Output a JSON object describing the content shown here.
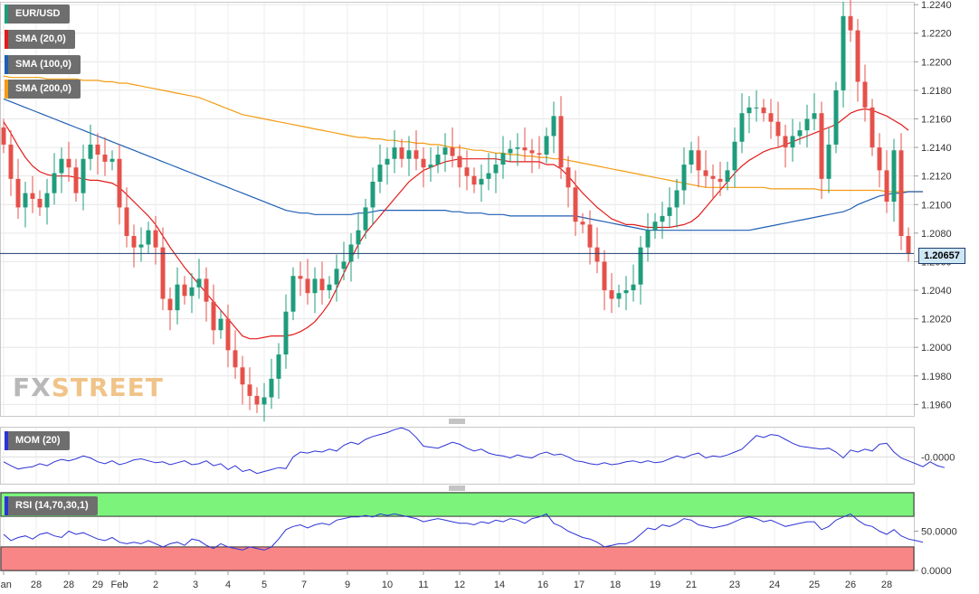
{
  "legend": {
    "symbol": "EUR/USD",
    "sma20": "SMA (20,0)",
    "sma100": "SMA (100,0)",
    "sma200": "SMA (200,0)",
    "mom": "MOM (20)",
    "rsi": "RSI (14,70,30,1)"
  },
  "current_price": "1.20657",
  "logo": {
    "fx": "FX",
    "street": "STREET"
  },
  "colors": {
    "bull": "#1f9c7c",
    "bear": "#e5514a",
    "sma20": "#e31b1b",
    "sma100": "#1f5fb4",
    "sma200": "#f39c12",
    "indicator": "#2d33d6",
    "rsi_overbought": "#7cf47c",
    "rsi_oversold": "#f98686"
  },
  "chart_data": {
    "type": "candlestick",
    "title": "EUR/USD",
    "price_axis": {
      "ticks": [
        "1.2240",
        "1.2220",
        "1.2200",
        "1.2180",
        "1.2160",
        "1.2140",
        "1.2120",
        "1.2100",
        "1.2080",
        "1.2060",
        "1.2040",
        "1.2020",
        "1.2000",
        "1.1980",
        "1.1960"
      ],
      "range": [
        1.1952,
        1.2242
      ]
    },
    "x_axis": {
      "labels": [
        "Jan",
        "28",
        "28",
        "29",
        "Feb",
        "2",
        "3",
        "4",
        "5",
        "7",
        "9",
        "10",
        "11",
        "12",
        "14",
        "16",
        "17",
        "18",
        "19",
        "21",
        "23",
        "24",
        "25",
        "26",
        "28"
      ],
      "label_positions": [
        0,
        4.5,
        9,
        13,
        16,
        21,
        26.5,
        31,
        36,
        41.5,
        47.5,
        53,
        58,
        63,
        68.5,
        74.5,
        79.5,
        84.5,
        90,
        95,
        101,
        106.5,
        112,
        117,
        122
      ]
    },
    "close_series": [
      1.2142,
      1.2118,
      1.2098,
      1.2108,
      1.2104,
      1.2098,
      1.2108,
      1.2122,
      1.2132,
      1.2126,
      1.2108,
      1.2132,
      1.2142,
      1.2135,
      1.213,
      1.2132,
      1.2098,
      1.2078,
      1.207,
      1.2072,
      1.2082,
      1.207,
      1.2034,
      1.2026,
      1.2044,
      1.2036,
      1.2042,
      1.2048,
      1.2032,
      1.2012,
      1.202,
      1.1998,
      1.1986,
      1.1974,
      1.1966,
      1.196,
      1.1965,
      1.1978,
      1.1995,
      1.2025,
      1.205,
      1.2048,
      1.2038,
      1.2048,
      1.204,
      1.2044,
      1.2055,
      1.206,
      1.2072,
      1.2082,
      1.2098,
      1.2116,
      1.2128,
      1.2132,
      1.214,
      1.2132,
      1.2138,
      1.2132,
      1.2126,
      1.2128,
      1.2135,
      1.214,
      1.2134,
      1.2126,
      1.212,
      1.2114,
      1.2118,
      1.2122,
      1.2128,
      1.2136,
      1.2139,
      1.214,
      1.2138,
      1.2136,
      1.2135,
      1.2148,
      1.2162,
      1.2126,
      1.2112,
      1.2088,
      1.2086,
      1.207,
      1.206,
      1.204,
      1.2034,
      1.2038,
      1.204,
      1.2044,
      1.207,
      1.2082,
      1.2088,
      1.2092,
      1.2098,
      1.211,
      1.2128,
      1.2138,
      1.2124,
      1.212,
      1.2118,
      1.2116,
      1.2124,
      1.2144,
      1.2164,
      1.2168,
      1.2168,
      1.2164,
      1.2158,
      1.2148,
      1.214,
      1.2148,
      1.2152,
      1.216,
      1.2164,
      1.2118,
      1.2142,
      1.218,
      1.2232,
      1.2222,
      1.2186,
      1.2168,
      1.214,
      1.2124,
      1.2102,
      1.2138,
      1.2078,
      1.2066
    ],
    "sma20": [
      1.2158,
      1.215,
      1.2141,
      1.2133,
      1.2127,
      1.2123,
      1.2121,
      1.212,
      1.212,
      1.212,
      1.2119,
      1.2118,
      1.2117,
      1.2117,
      1.2116,
      1.2115,
      1.2112,
      1.2107,
      1.2102,
      1.2097,
      1.2092,
      1.2086,
      1.2078,
      1.207,
      1.2063,
      1.2056,
      1.205,
      1.2044,
      1.2038,
      1.2032,
      1.2026,
      1.202,
      1.2014,
      1.2008,
      1.2006,
      1.2006,
      1.2007,
      1.2008,
      1.2008,
      1.2008,
      1.2009,
      1.2011,
      1.2014,
      1.2018,
      1.2024,
      1.2031,
      1.2041,
      1.2052,
      1.2062,
      1.2072,
      1.208,
      1.2086,
      1.2092,
      1.2098,
      1.2104,
      1.211,
      1.2116,
      1.212,
      1.2124,
      1.2126,
      1.2128,
      1.213,
      1.2131,
      1.2132,
      1.2132,
      1.2132,
      1.2132,
      1.2132,
      1.2132,
      1.2131,
      1.213,
      1.213,
      1.213,
      1.213,
      1.213,
      1.2128,
      1.2128,
      1.2125,
      1.212,
      1.2114,
      1.2108,
      1.2103,
      1.2098,
      1.2094,
      1.209,
      1.2088,
      1.2086,
      1.2086,
      1.2085,
      1.2084,
      1.2084,
      1.2084,
      1.2084,
      1.2085,
      1.2086,
      1.2088,
      1.2092,
      1.2098,
      1.2104,
      1.211,
      1.2116,
      1.2122,
      1.2127,
      1.2131,
      1.2134,
      1.2137,
      1.2139,
      1.214,
      1.2142,
      1.2144,
      1.2146,
      1.2148,
      1.215,
      1.2152,
      1.2154,
      1.2156,
      1.216,
      1.2164,
      1.2166,
      1.2167,
      1.2166,
      1.2164,
      1.2162,
      1.2159,
      1.2156,
      1.2152
    ],
    "sma100": [
      1.2174,
      1.2172,
      1.217,
      1.2168,
      1.2166,
      1.2164,
      1.2162,
      1.216,
      1.2158,
      1.2156,
      1.2154,
      1.2152,
      1.215,
      1.2148,
      1.2146,
      1.2144,
      1.2142,
      1.214,
      1.2138,
      1.2136,
      1.2134,
      1.2132,
      1.213,
      1.2128,
      1.2126,
      1.2124,
      1.2122,
      1.212,
      1.2118,
      1.2116,
      1.2114,
      1.2112,
      1.211,
      1.2108,
      1.2106,
      1.2104,
      1.2102,
      1.21,
      1.2098,
      1.2096,
      1.2095,
      1.2094,
      1.2094,
      1.2093,
      1.2093,
      1.2093,
      1.2093,
      1.2093,
      1.2093,
      1.2094,
      1.2094,
      1.2095,
      1.2096,
      1.2096,
      1.2096,
      1.2096,
      1.2096,
      1.2096,
      1.2096,
      1.2096,
      1.2096,
      1.2096,
      1.2095,
      1.2095,
      1.2094,
      1.2094,
      1.2094,
      1.2093,
      1.2093,
      1.2093,
      1.2092,
      1.2092,
      1.2092,
      1.2092,
      1.2092,
      1.2092,
      1.2092,
      1.2092,
      1.2092,
      1.2092,
      1.2091,
      1.209,
      1.2089,
      1.2088,
      1.2087,
      1.2086,
      1.2085,
      1.2084,
      1.2083,
      1.2082,
      1.2082,
      1.2082,
      1.2082,
      1.2082,
      1.2082,
      1.2082,
      1.2082,
      1.2082,
      1.2082,
      1.2082,
      1.2082,
      1.2082,
      1.2082,
      1.2082,
      1.2083,
      1.2084,
      1.2085,
      1.2086,
      1.2087,
      1.2088,
      1.2089,
      1.209,
      1.2091,
      1.2092,
      1.2093,
      1.2094,
      1.2095,
      1.2097,
      1.21,
      1.2102,
      1.2104,
      1.2106,
      1.2107,
      1.2108,
      1.2108,
      1.2109,
      1.2109,
      1.2109
    ],
    "sma200": [
      1.219,
      1.2189,
      1.2189,
      1.2189,
      1.2189,
      1.2189,
      1.2188,
      1.2188,
      1.2188,
      1.2188,
      1.2188,
      1.2187,
      1.2187,
      1.2187,
      1.2186,
      1.2186,
      1.2185,
      1.2185,
      1.2184,
      1.2183,
      1.2182,
      1.2181,
      1.218,
      1.2179,
      1.2178,
      1.2177,
      1.2176,
      1.2175,
      1.2173,
      1.2171,
      1.2169,
      1.2167,
      1.2165,
      1.2163,
      1.2162,
      1.2161,
      1.216,
      1.2159,
      1.2158,
      1.2157,
      1.2156,
      1.2155,
      1.2154,
      1.2153,
      1.2152,
      1.2151,
      1.215,
      1.2149,
      1.2148,
      1.2147,
      1.2147,
      1.2146,
      1.2146,
      1.2145,
      1.2145,
      1.2144,
      1.2144,
      1.2143,
      1.2143,
      1.2142,
      1.2142,
      1.2141,
      1.214,
      1.214,
      1.2139,
      1.2138,
      1.2138,
      1.2137,
      1.2136,
      1.2136,
      1.2135,
      1.2135,
      1.2134,
      1.2134,
      1.2133,
      1.2133,
      1.2132,
      1.2132,
      1.2131,
      1.213,
      1.2129,
      1.2128,
      1.2127,
      1.2126,
      1.2125,
      1.2124,
      1.2123,
      1.2122,
      1.2121,
      1.212,
      1.2119,
      1.2118,
      1.2117,
      1.2116,
      1.2115,
      1.2114,
      1.2113,
      1.2112,
      1.2112,
      1.2112,
      1.2112,
      1.2112,
      1.2112,
      1.2112,
      1.2112,
      1.2112,
      1.2111,
      1.2111,
      1.2111,
      1.2111,
      1.2111,
      1.2111,
      1.2111,
      1.211,
      1.211,
      1.211,
      1.211,
      1.211,
      1.211,
      1.211,
      1.211,
      1.211,
      1.2109,
      1.2109,
      1.2109,
      1.2109,
      1.2109,
      1.2109
    ],
    "momentum": {
      "name": "MOM (20)",
      "tick": "-0.0000",
      "range": [
        -0.0055,
        0.0062
      ],
      "values": [
        -0.001,
        -0.0018,
        -0.0025,
        -0.0022,
        -0.002,
        -0.0014,
        -0.0018,
        -0.001,
        -0.0005,
        -0.0008,
        -0.0004,
        0.0002,
        -0.0002,
        -0.001,
        -0.0014,
        -0.0008,
        -0.0016,
        -0.0012,
        -0.0006,
        -0.0004,
        -0.0008,
        -0.0012,
        -0.001,
        -0.0016,
        -0.0012,
        -0.0008,
        -0.0016,
        -0.0014,
        -0.0008,
        -0.0018,
        -0.0014,
        -0.0026,
        -0.0018,
        -0.003,
        -0.0026,
        -0.0034,
        -0.003,
        -0.0026,
        -0.0022,
        -0.0024,
        0.0,
        0.001,
        0.0008,
        0.0012,
        0.001,
        0.0016,
        0.0012,
        0.0024,
        0.003,
        0.0026,
        0.0036,
        0.0042,
        0.0046,
        0.005,
        0.0056,
        0.006,
        0.0054,
        0.004,
        0.0022,
        0.002,
        0.0018,
        0.0024,
        0.003,
        0.0026,
        0.0018,
        0.0012,
        0.0016,
        0.0008,
        0.0004,
        0.0002,
        -0.0002,
        0.0004,
        0.0,
        -0.0002,
        0.0006,
        0.001,
        0.0004,
        0.0006,
        0.0,
        -0.0008,
        -0.001,
        -0.0014,
        -0.0016,
        -0.0012,
        -0.0016,
        -0.0014,
        -0.001,
        -0.0008,
        -0.0012,
        -0.0008,
        -0.0012,
        -0.001,
        -0.0004,
        0.0002,
        -0.0002,
        0.0004,
        0.0008,
        -0.0002,
        0.0002,
        0.0,
        0.0004,
        0.001,
        0.0016,
        0.003,
        0.0044,
        0.004,
        0.0046,
        0.0044,
        0.0036,
        0.0028,
        0.0022,
        0.002,
        0.0018,
        0.0016,
        0.0018,
        0.001,
        -0.0002,
        0.0014,
        0.001,
        0.0016,
        0.0012,
        0.0026,
        0.0028,
        0.001,
        -0.0002,
        -0.0008,
        -0.0014,
        -0.002,
        -0.001,
        -0.0018,
        -0.0022
      ]
    },
    "rsi": {
      "name": "RSI (14,70,30,1)",
      "ticks": [
        "50.0000",
        "0.0000"
      ],
      "range": [
        0,
        100
      ],
      "overbought": 70,
      "oversold": 30,
      "values": [
        46,
        38,
        42,
        44,
        40,
        46,
        48,
        44,
        42,
        50,
        46,
        48,
        44,
        40,
        38,
        42,
        36,
        34,
        36,
        34,
        38,
        34,
        30,
        34,
        36,
        32,
        40,
        38,
        32,
        28,
        34,
        30,
        28,
        26,
        30,
        28,
        26,
        30,
        40,
        52,
        56,
        58,
        54,
        58,
        60,
        58,
        64,
        66,
        68,
        68,
        70,
        68,
        72,
        70,
        72,
        70,
        68,
        66,
        62,
        64,
        66,
        64,
        62,
        60,
        60,
        58,
        62,
        60,
        64,
        62,
        66,
        64,
        60,
        66,
        68,
        72,
        60,
        56,
        50,
        46,
        42,
        40,
        36,
        30,
        32,
        34,
        34,
        38,
        46,
        54,
        52,
        58,
        56,
        60,
        66,
        64,
        58,
        56,
        54,
        56,
        58,
        62,
        66,
        68,
        66,
        62,
        64,
        60,
        56,
        58,
        60,
        62,
        62,
        52,
        56,
        64,
        68,
        72,
        64,
        58,
        56,
        50,
        46,
        52,
        44,
        40,
        38,
        36
      ]
    }
  }
}
